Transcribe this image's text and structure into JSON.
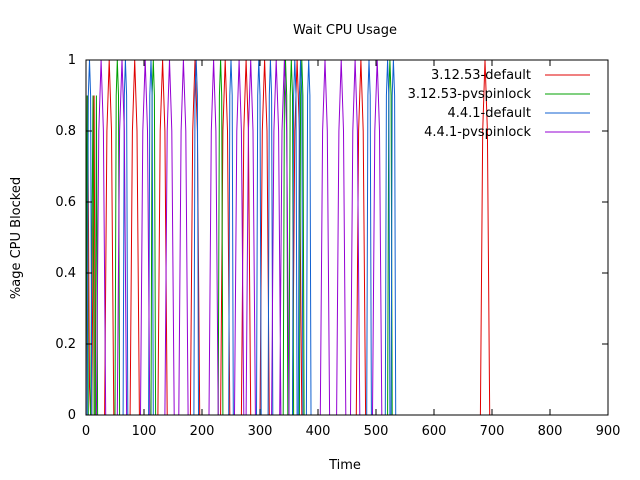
{
  "chart_data": {
    "type": "line",
    "title": "Wait CPU Usage",
    "xlabel": "Time",
    "ylabel": "%age CPU Blocked",
    "xlim": [
      0,
      900
    ],
    "ylim": [
      0,
      1
    ],
    "xticks": [
      "0",
      "100",
      "200",
      "300",
      "400",
      "500",
      "600",
      "700",
      "800",
      "900"
    ],
    "yticks": [
      "0",
      "0.2",
      "0.4",
      "0.6",
      "0.8",
      "1"
    ],
    "grid": false,
    "legend_position": "top-right",
    "series": [
      {
        "name": "3.12.53-default",
        "color": "#e00000",
        "x": [
          0,
          3,
          6,
          8,
          10,
          14,
          16,
          32,
          36,
          40,
          44,
          48,
          76,
          80,
          84,
          88,
          92,
          124,
          128,
          132,
          136,
          140,
          180,
          184,
          188,
          192,
          196,
          232,
          236,
          240,
          244,
          248,
          268,
          272,
          276,
          280,
          284,
          300,
          304,
          308,
          312,
          316,
          356,
          360,
          364,
          368,
          372,
          466,
          470,
          474,
          478,
          482,
          680,
          684,
          688,
          692,
          696
        ],
        "y": [
          0.08,
          0.9,
          0.08,
          0,
          0,
          0.9,
          0,
          0,
          0.8,
          1,
          0.8,
          0,
          0,
          0.8,
          1,
          0.8,
          0,
          0,
          0.8,
          1,
          0.8,
          0,
          0,
          0.8,
          1,
          0.8,
          0,
          0,
          0.8,
          1,
          0.8,
          0,
          0,
          0.8,
          1,
          0.8,
          0,
          0,
          0.8,
          1,
          0.8,
          0,
          0,
          0.8,
          1,
          0.8,
          0,
          0,
          0.8,
          1,
          0.8,
          0,
          0,
          0.8,
          1,
          0.8,
          0
        ]
      },
      {
        "name": "3.12.53-pvspinlock",
        "color": "#00a000",
        "x": [
          0,
          2,
          4,
          6,
          8,
          12,
          14,
          16,
          18,
          20,
          50,
          52,
          54,
          56,
          58,
          112,
          114,
          116,
          118,
          120,
          228,
          230,
          232,
          234,
          236,
          340,
          342,
          344,
          346,
          348,
          350,
          352,
          354,
          356,
          358,
          368,
          370,
          372,
          374,
          376,
          520,
          522,
          524,
          526,
          528
        ],
        "y": [
          0,
          0.9,
          0,
          0,
          0,
          0.9,
          0,
          0,
          0.9,
          0,
          0,
          0.9,
          1,
          0.9,
          0,
          0,
          0.9,
          1,
          0.9,
          0,
          0,
          0.9,
          1,
          0.9,
          0,
          0,
          0.9,
          1,
          0.9,
          0,
          0,
          0.9,
          1,
          0.9,
          0,
          0,
          0.9,
          1,
          0.9,
          0,
          0,
          0.9,
          1,
          0.9,
          0
        ]
      },
      {
        "name": "4.4.1-default",
        "color": "#1060d0",
        "x": [
          2,
          4,
          6,
          8,
          10,
          64,
          66,
          68,
          70,
          72,
          108,
          110,
          112,
          114,
          116,
          186,
          188,
          190,
          192,
          194,
          246,
          248,
          250,
          252,
          254,
          294,
          296,
          298,
          300,
          302,
          314,
          316,
          318,
          320,
          322,
          356,
          358,
          360,
          362,
          364,
          366,
          368,
          370,
          372,
          374,
          380,
          382,
          384,
          386,
          388,
          484,
          486,
          488,
          490,
          492,
          516,
          518,
          520,
          522,
          524,
          526,
          528,
          530,
          532,
          534
        ],
        "y": [
          0,
          0.9,
          1,
          0.9,
          0,
          0,
          0.9,
          1,
          0.9,
          0,
          0,
          0.9,
          1,
          0.9,
          0,
          0,
          0.9,
          1,
          0.9,
          0,
          0,
          0.9,
          1,
          0.9,
          0,
          0,
          0.9,
          1,
          0.9,
          0,
          0,
          0.9,
          1,
          0.9,
          0,
          0,
          0.9,
          1,
          0.9,
          0,
          0,
          0.9,
          1,
          0.9,
          0,
          0,
          0.9,
          1,
          0.9,
          0,
          0,
          0.9,
          1,
          0.9,
          0,
          0,
          0.9,
          1,
          0.9,
          0,
          0,
          0.9,
          1,
          0.9,
          0
        ]
      },
      {
        "name": "4.4.1-pvspinlock",
        "color": "#9400d3",
        "x": [
          18,
          22,
          26,
          30,
          34,
          54,
          58,
          62,
          66,
          70,
          94,
          98,
          102,
          106,
          110,
          136,
          140,
          144,
          148,
          152,
          160,
          164,
          168,
          172,
          176,
          212,
          216,
          220,
          224,
          228,
          256,
          260,
          264,
          268,
          272,
          276,
          280,
          284,
          288,
          292,
          320,
          324,
          328,
          332,
          336,
          334,
          338,
          342,
          346,
          350,
          404,
          408,
          412,
          416,
          420,
          432,
          436,
          440,
          444,
          448,
          456,
          460,
          464,
          468,
          472,
          494,
          498,
          502,
          506,
          510
        ],
        "y": [
          0,
          0.8,
          1,
          0.8,
          0,
          0,
          0.8,
          1,
          0.8,
          0,
          0,
          0.8,
          1,
          0.8,
          0,
          0,
          0.8,
          1,
          0.8,
          0,
          0,
          0.8,
          1,
          0.8,
          0,
          0,
          0.8,
          1,
          0.8,
          0,
          0,
          0.8,
          1,
          0.8,
          0,
          0,
          0.8,
          1,
          0.8,
          0,
          0,
          0.8,
          1,
          0.8,
          0,
          0,
          0.8,
          1,
          0.8,
          0,
          0,
          0.8,
          1,
          0.8,
          0,
          0,
          0.8,
          1,
          0.8,
          0,
          0,
          0.8,
          1,
          0.8,
          0,
          0,
          0.8,
          1,
          0.8,
          0
        ]
      }
    ]
  }
}
